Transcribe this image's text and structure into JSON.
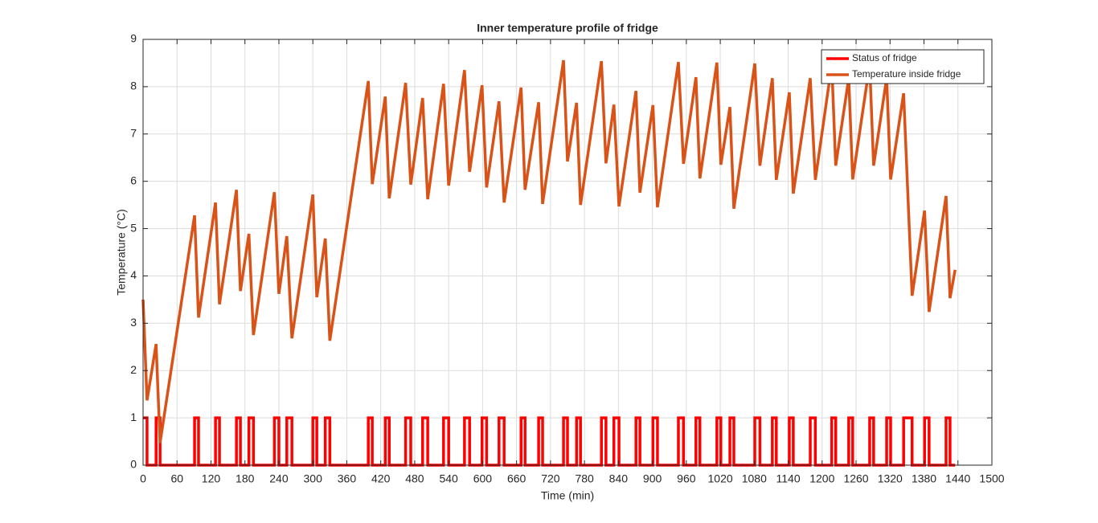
{
  "chart_data": {
    "type": "line",
    "title": "Inner temperature profile of fridge",
    "x_label": "Time (min)",
    "y_label": "Temperature (°C)",
    "xlim": [
      0,
      1500
    ],
    "xticks": [
      0,
      60,
      120,
      180,
      240,
      300,
      360,
      420,
      480,
      540,
      600,
      660,
      720,
      780,
      840,
      900,
      960,
      1020,
      1080,
      1140,
      1200,
      1260,
      1320,
      1380,
      1440,
      1500
    ],
    "ylim": [
      0,
      9
    ],
    "yticks": [
      0,
      1,
      2,
      3,
      4,
      5,
      6,
      7,
      8,
      9
    ],
    "grid": true,
    "legend": "top-right",
    "series": [
      {
        "name": "Status of fridge",
        "color": "#ff0000",
        "x": [
          0,
          7,
          7,
          23,
          23,
          30,
          30,
          91,
          91,
          98,
          98,
          128,
          128,
          135,
          135,
          165,
          165,
          172,
          172,
          187,
          187,
          195,
          195,
          232,
          232,
          240,
          240,
          254,
          254,
          263,
          263,
          300,
          300,
          307,
          307,
          322,
          322,
          330,
          330,
          398,
          398,
          405,
          405,
          428,
          428,
          435,
          435,
          464,
          464,
          473,
          473,
          494,
          494,
          503,
          503,
          531,
          531,
          540,
          540,
          568,
          568,
          577,
          577,
          599,
          599,
          607,
          607,
          629,
          629,
          638,
          638,
          668,
          668,
          675,
          675,
          699,
          699,
          706,
          706,
          743,
          743,
          750,
          750,
          766,
          766,
          773,
          773,
          810,
          810,
          818,
          818,
          832,
          832,
          841,
          841,
          871,
          871,
          878,
          878,
          901,
          901,
          909,
          909,
          946,
          946,
          955,
          955,
          977,
          977,
          984,
          984,
          1014,
          1014,
          1021,
          1021,
          1037,
          1037,
          1044,
          1044,
          1081,
          1081,
          1090,
          1090,
          1112,
          1112,
          1119,
          1119,
          1142,
          1142,
          1149,
          1149,
          1179,
          1179,
          1188,
          1188,
          1217,
          1217,
          1224,
          1224,
          1247,
          1247,
          1254,
          1254,
          1284,
          1284,
          1291,
          1291,
          1314,
          1314,
          1321,
          1321,
          1344,
          1344,
          1359,
          1359,
          1381,
          1381,
          1389,
          1389,
          1419,
          1419,
          1426,
          1426,
          1435
        ],
        "values": [
          1,
          1,
          0,
          0,
          1,
          1,
          0,
          0,
          1,
          1,
          0,
          0,
          1,
          1,
          0,
          0,
          1,
          1,
          0,
          0,
          1,
          1,
          0,
          0,
          1,
          1,
          0,
          0,
          1,
          1,
          0,
          0,
          1,
          1,
          0,
          0,
          1,
          1,
          0,
          0,
          1,
          1,
          0,
          0,
          1,
          1,
          0,
          0,
          1,
          1,
          0,
          0,
          1,
          1,
          0,
          0,
          1,
          1,
          0,
          0,
          1,
          1,
          0,
          0,
          1,
          1,
          0,
          0,
          1,
          1,
          0,
          0,
          1,
          1,
          0,
          0,
          1,
          1,
          0,
          0,
          1,
          1,
          0,
          0,
          1,
          1,
          0,
          0,
          1,
          1,
          0,
          0,
          1,
          1,
          0,
          0,
          1,
          1,
          0,
          0,
          1,
          1,
          0,
          0,
          1,
          1,
          0,
          0,
          1,
          1,
          0,
          0,
          1,
          1,
          0,
          0,
          1,
          1,
          0,
          0,
          1,
          1,
          0,
          0,
          1,
          1,
          0,
          0,
          1,
          1,
          0,
          0,
          1,
          1,
          0,
          0,
          1,
          1,
          0,
          0,
          1,
          1,
          0,
          0,
          1,
          1,
          0,
          0,
          1,
          1,
          0,
          0,
          1,
          1,
          0,
          0,
          1,
          1,
          0,
          0,
          1,
          1,
          0,
          0
        ]
      },
      {
        "name": "Temperature inside fridge",
        "color": "#d95319",
        "x": [
          0,
          7,
          23,
          30,
          91,
          98,
          128,
          135,
          165,
          172,
          187,
          195,
          232,
          240,
          254,
          263,
          300,
          307,
          322,
          330,
          398,
          405,
          428,
          435,
          464,
          473,
          494,
          503,
          531,
          540,
          568,
          577,
          599,
          607,
          629,
          638,
          668,
          675,
          699,
          706,
          743,
          750,
          766,
          773,
          810,
          818,
          832,
          841,
          871,
          878,
          901,
          909,
          946,
          955,
          977,
          984,
          1014,
          1021,
          1037,
          1044,
          1081,
          1090,
          1112,
          1119,
          1142,
          1149,
          1179,
          1188,
          1217,
          1224,
          1247,
          1254,
          1284,
          1291,
          1314,
          1321,
          1344,
          1359,
          1381,
          1389,
          1419,
          1426,
          1435
        ],
        "values": [
          3.5,
          1.37,
          2.56,
          0.47,
          5.28,
          3.12,
          5.55,
          3.4,
          5.82,
          3.68,
          4.89,
          2.75,
          5.77,
          3.62,
          4.84,
          2.68,
          5.72,
          3.55,
          4.79,
          2.63,
          8.12,
          5.94,
          7.79,
          5.64,
          8.08,
          5.93,
          7.76,
          5.62,
          8.06,
          5.91,
          8.35,
          6.2,
          8.03,
          5.87,
          7.69,
          5.55,
          7.98,
          5.82,
          7.67,
          5.52,
          8.56,
          6.42,
          7.66,
          5.5,
          8.54,
          6.38,
          7.62,
          5.47,
          7.91,
          5.76,
          7.61,
          5.45,
          8.52,
          6.37,
          8.2,
          6.06,
          8.51,
          6.35,
          7.57,
          5.42,
          8.49,
          6.33,
          8.18,
          6.03,
          7.88,
          5.74,
          8.18,
          6.03,
          8.47,
          6.33,
          8.18,
          6.04,
          8.47,
          6.33,
          8.18,
          6.04,
          7.86,
          3.58,
          5.38,
          3.24,
          5.69,
          3.53,
          4.13
        ]
      }
    ]
  }
}
